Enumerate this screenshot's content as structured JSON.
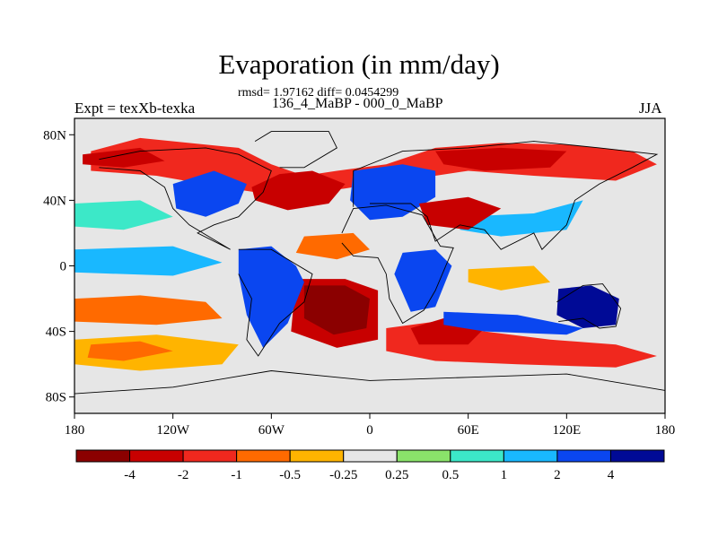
{
  "title": "Evaporation (in mm/day)",
  "stats_line": "rmsd= 1.97162 diff= 0.0454299",
  "comparison_line": "136_4_MaBP - 000_0_MaBP",
  "left_label": "Expt = texXb-texka",
  "right_label": "JJA",
  "map": {
    "projection": "cylindrical equidistant",
    "lon_range": [
      -180,
      180
    ],
    "lat_range": [
      -90,
      90
    ],
    "lat_ticks": [
      {
        "value": 80,
        "label": "80N"
      },
      {
        "value": 40,
        "label": "40N"
      },
      {
        "value": 0,
        "label": "0"
      },
      {
        "value": -40,
        "label": "40S"
      },
      {
        "value": -80,
        "label": "80S"
      }
    ],
    "lon_ticks": [
      {
        "value": -180,
        "label": "180"
      },
      {
        "value": -120,
        "label": "120W"
      },
      {
        "value": -60,
        "label": "60W"
      },
      {
        "value": 0,
        "label": "0"
      },
      {
        "value": 60,
        "label": "60E"
      },
      {
        "value": 120,
        "label": "120E"
      },
      {
        "value": 180,
        "label": "180"
      }
    ],
    "missing_color": "#e6e6e6"
  },
  "colorbar": {
    "bins": [
      {
        "color": "#8b0000"
      },
      {
        "color": "#c80000"
      },
      {
        "color": "#f0281e"
      },
      {
        "color": "#ff6a00"
      },
      {
        "color": "#ffb400"
      },
      {
        "color": "#e6e6e6"
      },
      {
        "color": "#8ae36a"
      },
      {
        "color": "#3ce8c8"
      },
      {
        "color": "#19b8ff"
      },
      {
        "color": "#0a46f0"
      },
      {
        "color": "#000a96"
      }
    ],
    "labels": [
      "-4",
      "-2",
      "-1",
      "-0.5",
      "-0.25",
      "0.25",
      "0.5",
      "1",
      "2",
      "4"
    ]
  },
  "regions": [
    {
      "name": "northern-midlat-band",
      "color": "#f0281e",
      "points": [
        [
          -170,
          70
        ],
        [
          -140,
          78
        ],
        [
          -80,
          72
        ],
        [
          -60,
          62
        ],
        [
          -40,
          55
        ],
        [
          -20,
          58
        ],
        [
          10,
          62
        ],
        [
          40,
          72
        ],
        [
          80,
          75
        ],
        [
          120,
          74
        ],
        [
          160,
          70
        ],
        [
          175,
          62
        ],
        [
          150,
          52
        ],
        [
          100,
          55
        ],
        [
          60,
          58
        ],
        [
          20,
          52
        ],
        [
          -10,
          48
        ],
        [
          -50,
          42
        ],
        [
          -90,
          48
        ],
        [
          -130,
          55
        ],
        [
          -170,
          58
        ]
      ]
    },
    {
      "name": "north-atlantic-core",
      "color": "#c80000",
      "points": [
        [
          -72,
          48
        ],
        [
          -55,
          56
        ],
        [
          -35,
          58
        ],
        [
          -15,
          50
        ],
        [
          -25,
          38
        ],
        [
          -50,
          34
        ],
        [
          -70,
          40
        ]
      ]
    },
    {
      "name": "siberia-core",
      "color": "#c80000",
      "points": [
        [
          40,
          70
        ],
        [
          80,
          72
        ],
        [
          120,
          70
        ],
        [
          110,
          60
        ],
        [
          70,
          58
        ],
        [
          45,
          62
        ]
      ]
    },
    {
      "name": "north-pacific-core",
      "color": "#c80000",
      "points": [
        [
          -175,
          68
        ],
        [
          -140,
          72
        ],
        [
          -125,
          64
        ],
        [
          -150,
          60
        ],
        [
          -175,
          62
        ]
      ]
    },
    {
      "name": "south-atlantic-dry",
      "color": "#c80000",
      "points": [
        [
          -45,
          -8
        ],
        [
          -15,
          -8
        ],
        [
          5,
          -15
        ],
        [
          5,
          -45
        ],
        [
          -20,
          -50
        ],
        [
          -48,
          -40
        ]
      ]
    },
    {
      "name": "south-atlantic-core",
      "color": "#8b0000",
      "points": [
        [
          -40,
          -12
        ],
        [
          -15,
          -12
        ],
        [
          0,
          -20
        ],
        [
          -2,
          -38
        ],
        [
          -22,
          -42
        ],
        [
          -40,
          -32
        ]
      ]
    },
    {
      "name": "southern-ocean-band",
      "color": "#f0281e",
      "points": [
        [
          10,
          -38
        ],
        [
          40,
          -34
        ],
        [
          70,
          -40
        ],
        [
          110,
          -45
        ],
        [
          150,
          -48
        ],
        [
          175,
          -55
        ],
        [
          150,
          -62
        ],
        [
          90,
          -60
        ],
        [
          40,
          -58
        ],
        [
          10,
          -52
        ]
      ]
    },
    {
      "name": "indian-south-core",
      "color": "#c80000",
      "points": [
        [
          25,
          -38
        ],
        [
          45,
          -32
        ],
        [
          70,
          -38
        ],
        [
          60,
          -48
        ],
        [
          30,
          -48
        ]
      ]
    },
    {
      "name": "east-pacific-tongue",
      "color": "#ff6a00",
      "points": [
        [
          -180,
          -20
        ],
        [
          -140,
          -18
        ],
        [
          -100,
          -22
        ],
        [
          -90,
          -32
        ],
        [
          -130,
          -36
        ],
        [
          -180,
          -34
        ]
      ]
    },
    {
      "name": "south-pacific-band",
      "color": "#ffb400",
      "points": [
        [
          -180,
          -45
        ],
        [
          -130,
          -42
        ],
        [
          -80,
          -48
        ],
        [
          -90,
          -60
        ],
        [
          -140,
          -64
        ],
        [
          -180,
          -60
        ]
      ]
    },
    {
      "name": "south-pacific-core",
      "color": "#ff6a00",
      "points": [
        [
          -170,
          -48
        ],
        [
          -140,
          -46
        ],
        [
          -120,
          -52
        ],
        [
          -150,
          -58
        ],
        [
          -172,
          -56
        ]
      ]
    },
    {
      "name": "north-pacific-cool",
      "color": "#3ce8c8",
      "points": [
        [
          -180,
          38
        ],
        [
          -140,
          40
        ],
        [
          -120,
          30
        ],
        [
          -150,
          22
        ],
        [
          -180,
          24
        ]
      ]
    },
    {
      "name": "tropical-pacific-blue",
      "color": "#19b8ff",
      "points": [
        [
          -180,
          10
        ],
        [
          -120,
          12
        ],
        [
          -90,
          2
        ],
        [
          -120,
          -6
        ],
        [
          -180,
          -4
        ]
      ]
    },
    {
      "name": "south-america-wet",
      "color": "#0a46f0",
      "points": [
        [
          -80,
          10
        ],
        [
          -60,
          12
        ],
        [
          -45,
          0
        ],
        [
          -40,
          -10
        ],
        [
          -50,
          -35
        ],
        [
          -65,
          -50
        ],
        [
          -75,
          -30
        ],
        [
          -80,
          -5
        ]
      ]
    },
    {
      "name": "north-america-wet",
      "color": "#0a46f0",
      "points": [
        [
          -120,
          50
        ],
        [
          -95,
          58
        ],
        [
          -75,
          50
        ],
        [
          -80,
          38
        ],
        [
          -100,
          30
        ],
        [
          -118,
          35
        ]
      ]
    },
    {
      "name": "europe-africa-wet",
      "color": "#0a46f0",
      "points": [
        [
          -10,
          58
        ],
        [
          20,
          62
        ],
        [
          40,
          58
        ],
        [
          40,
          42
        ],
        [
          20,
          30
        ],
        [
          0,
          28
        ],
        [
          -12,
          40
        ]
      ]
    },
    {
      "name": "east-africa-wet",
      "color": "#0a46f0",
      "points": [
        [
          20,
          8
        ],
        [
          40,
          10
        ],
        [
          50,
          0
        ],
        [
          40,
          -25
        ],
        [
          25,
          -28
        ],
        [
          15,
          -5
        ]
      ]
    },
    {
      "name": "australia-wet",
      "color": "#000a96",
      "points": [
        [
          115,
          -14
        ],
        [
          135,
          -12
        ],
        [
          152,
          -20
        ],
        [
          150,
          -36
        ],
        [
          130,
          -38
        ],
        [
          114,
          -30
        ]
      ]
    },
    {
      "name": "indian-ocean-wet",
      "color": "#0a46f0",
      "points": [
        [
          45,
          -28
        ],
        [
          90,
          -30
        ],
        [
          130,
          -38
        ],
        [
          120,
          -42
        ],
        [
          70,
          -40
        ],
        [
          45,
          -36
        ]
      ]
    },
    {
      "name": "asia-mid-blue",
      "color": "#19b8ff",
      "points": [
        [
          55,
          30
        ],
        [
          100,
          32
        ],
        [
          130,
          40
        ],
        [
          120,
          22
        ],
        [
          80,
          18
        ],
        [
          55,
          22
        ]
      ]
    },
    {
      "name": "tropical-atlantic-orange",
      "color": "#ff6a00",
      "points": [
        [
          -40,
          18
        ],
        [
          -10,
          20
        ],
        [
          0,
          10
        ],
        [
          -20,
          4
        ],
        [
          -45,
          8
        ]
      ]
    },
    {
      "name": "arabia-red",
      "color": "#c80000",
      "points": [
        [
          30,
          38
        ],
        [
          60,
          42
        ],
        [
          80,
          35
        ],
        [
          60,
          22
        ],
        [
          35,
          25
        ]
      ]
    },
    {
      "name": "indian-tropics-orange",
      "color": "#ffb400",
      "points": [
        [
          60,
          -2
        ],
        [
          100,
          0
        ],
        [
          110,
          -10
        ],
        [
          80,
          -15
        ],
        [
          60,
          -10
        ]
      ]
    }
  ],
  "coastlines": [
    {
      "name": "north-america",
      "points": [
        [
          -165,
          65
        ],
        [
          -140,
          70
        ],
        [
          -100,
          72
        ],
        [
          -80,
          68
        ],
        [
          -60,
          58
        ],
        [
          -65,
          45
        ],
        [
          -80,
          30
        ],
        [
          -95,
          25
        ],
        [
          -105,
          20
        ],
        [
          -85,
          10
        ],
        [
          -110,
          25
        ],
        [
          -120,
          35
        ],
        [
          -125,
          48
        ],
        [
          -140,
          58
        ],
        [
          -165,
          60
        ]
      ]
    },
    {
      "name": "south-america",
      "points": [
        [
          -80,
          10
        ],
        [
          -60,
          10
        ],
        [
          -35,
          -5
        ],
        [
          -40,
          -22
        ],
        [
          -55,
          -35
        ],
        [
          -68,
          -55
        ],
        [
          -75,
          -45
        ],
        [
          -72,
          -20
        ],
        [
          -80,
          -5
        ]
      ]
    },
    {
      "name": "eurasia",
      "points": [
        [
          -10,
          36
        ],
        [
          -10,
          58
        ],
        [
          20,
          70
        ],
        [
          60,
          72
        ],
        [
          100,
          76
        ],
        [
          140,
          72
        ],
        [
          175,
          68
        ],
        [
          160,
          60
        ],
        [
          140,
          50
        ],
        [
          125,
          40
        ],
        [
          120,
          25
        ],
        [
          105,
          10
        ],
        [
          100,
          20
        ],
        [
          80,
          10
        ],
        [
          70,
          22
        ],
        [
          55,
          25
        ],
        [
          40,
          15
        ],
        [
          35,
          30
        ],
        [
          25,
          38
        ],
        [
          0,
          38
        ]
      ]
    },
    {
      "name": "africa",
      "points": [
        [
          -17,
          20
        ],
        [
          -10,
          35
        ],
        [
          10,
          37
        ],
        [
          32,
          31
        ],
        [
          43,
          12
        ],
        [
          51,
          11
        ],
        [
          40,
          -15
        ],
        [
          33,
          -27
        ],
        [
          20,
          -35
        ],
        [
          12,
          -20
        ],
        [
          10,
          -5
        ],
        [
          5,
          5
        ],
        [
          -10,
          6
        ],
        [
          -17,
          14
        ]
      ]
    },
    {
      "name": "australia",
      "points": [
        [
          114,
          -22
        ],
        [
          130,
          -12
        ],
        [
          142,
          -11
        ],
        [
          153,
          -26
        ],
        [
          150,
          -37
        ],
        [
          140,
          -38
        ],
        [
          130,
          -32
        ],
        [
          115,
          -34
        ]
      ]
    },
    {
      "name": "greenland",
      "points": [
        [
          -55,
          60
        ],
        [
          -40,
          60
        ],
        [
          -20,
          72
        ],
        [
          -25,
          82
        ],
        [
          -60,
          82
        ],
        [
          -70,
          76
        ]
      ]
    },
    {
      "name": "antarctica",
      "points": [
        [
          -180,
          -78
        ],
        [
          -120,
          -74
        ],
        [
          -60,
          -64
        ],
        [
          0,
          -70
        ],
        [
          60,
          -68
        ],
        [
          120,
          -66
        ],
        [
          180,
          -76
        ]
      ]
    }
  ]
}
